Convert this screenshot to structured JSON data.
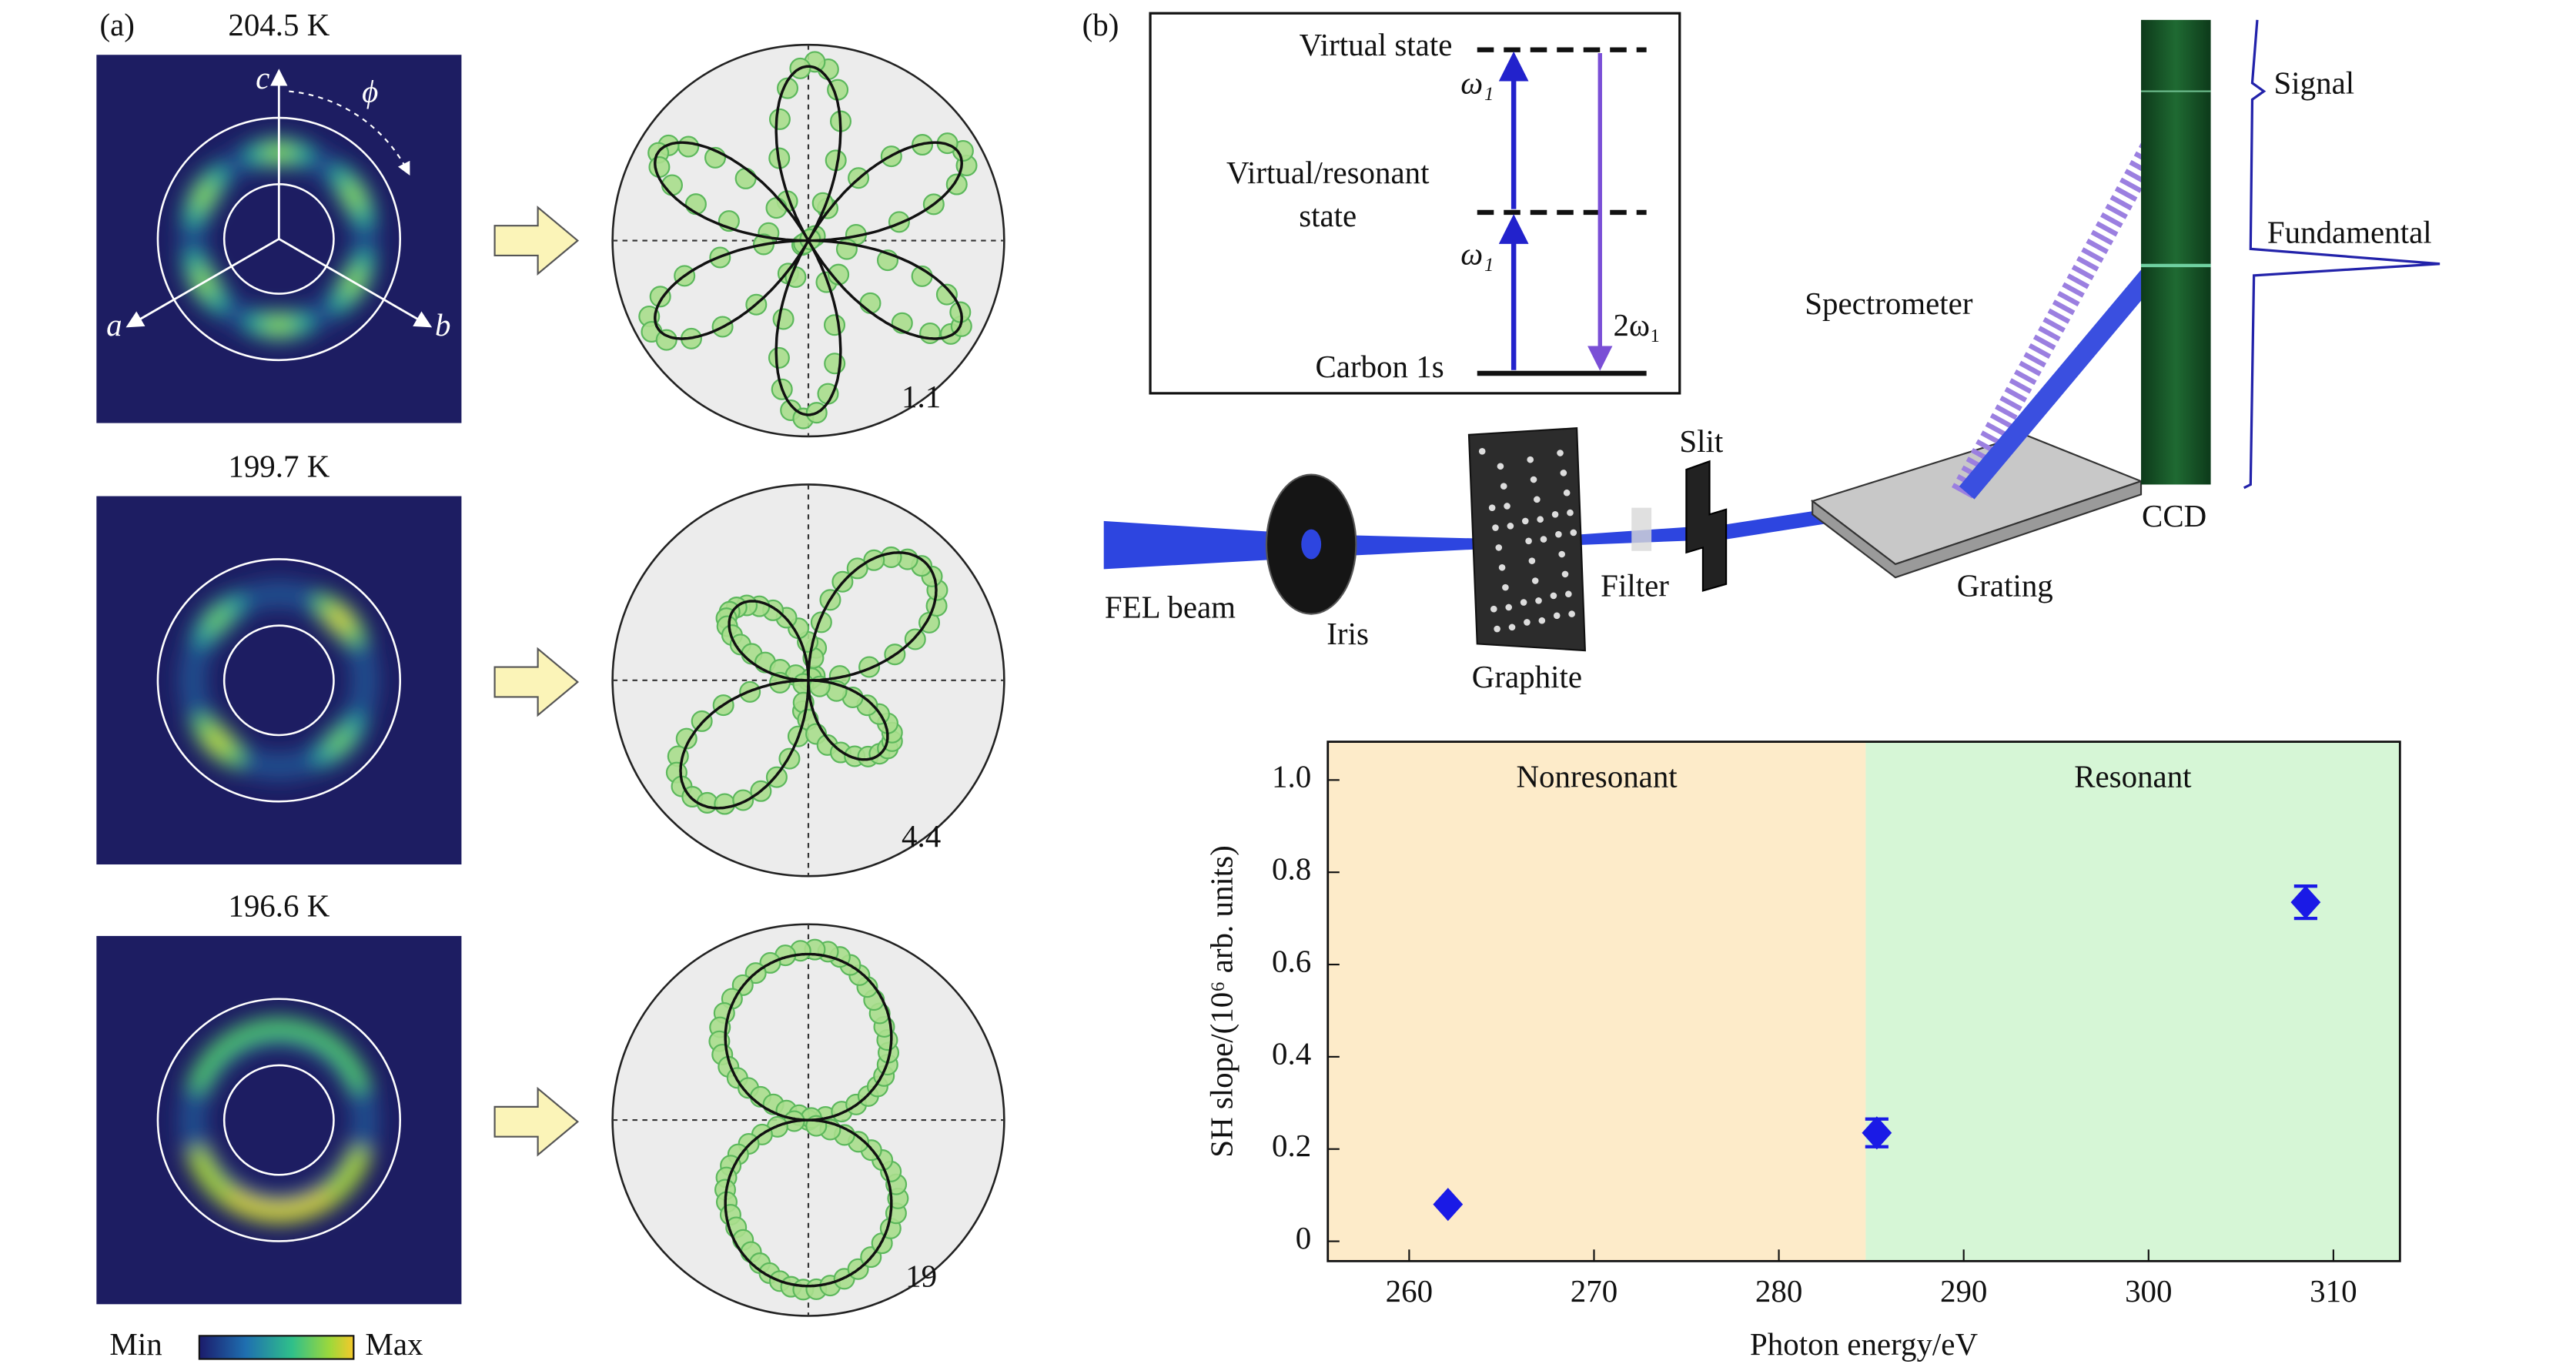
{
  "panel_a": {
    "label": "(a)",
    "temperatures": [
      "204.5 K",
      "199.7 K",
      "196.6 K"
    ],
    "axes": [
      "a",
      "b",
      "c"
    ],
    "angle": "ϕ",
    "ratios": [
      "1.1",
      "4.4",
      "19"
    ],
    "colorbar": {
      "min": "Min",
      "max": "Max"
    }
  },
  "panel_b": {
    "label": "(b)",
    "top_level": "Virtual state",
    "resonant_level": [
      "Virtual/resonant",
      "state"
    ],
    "ground_level": "Carbon 1s",
    "photons": [
      "ω₁",
      "ω₁",
      "2ω₁"
    ],
    "components": {
      "source": "FEL beam",
      "iris": "Iris",
      "sample": "Graphite",
      "filter": "Filter",
      "slit": "Slit",
      "grating": "Grating",
      "spectrometer": "Spectrometer",
      "detector": "CCD",
      "signal": "Signal",
      "fundamental": "Fundamental"
    }
  },
  "chart_data": {
    "type": "scatter",
    "x_label": "Photon energy/eV",
    "y_label": "SH slope/(10⁶ arb. units)",
    "x": [
      262.1,
      285.3,
      308.5
    ],
    "values": [
      0.08,
      0.235,
      0.735
    ],
    "errors": [
      0.005,
      0.03,
      0.035
    ],
    "color": "#1a1ae6",
    "xlim": [
      255.6,
      313.6
    ],
    "ylim": [
      -0.043,
      1.083
    ],
    "xticks": [
      260,
      270,
      280,
      290,
      300,
      310
    ],
    "yticks": [
      0,
      0.2,
      0.4,
      0.6,
      0.8,
      {
        "value": 1,
        "label": "1.0"
      }
    ],
    "regions": [
      {
        "name": "Nonresonant",
        "from": 255.6,
        "to": 284.7,
        "color": "#fdebc9"
      },
      {
        "name": "Resonant",
        "from": 284.7,
        "to": 313.6,
        "color": "#d6f6d6"
      }
    ]
  }
}
